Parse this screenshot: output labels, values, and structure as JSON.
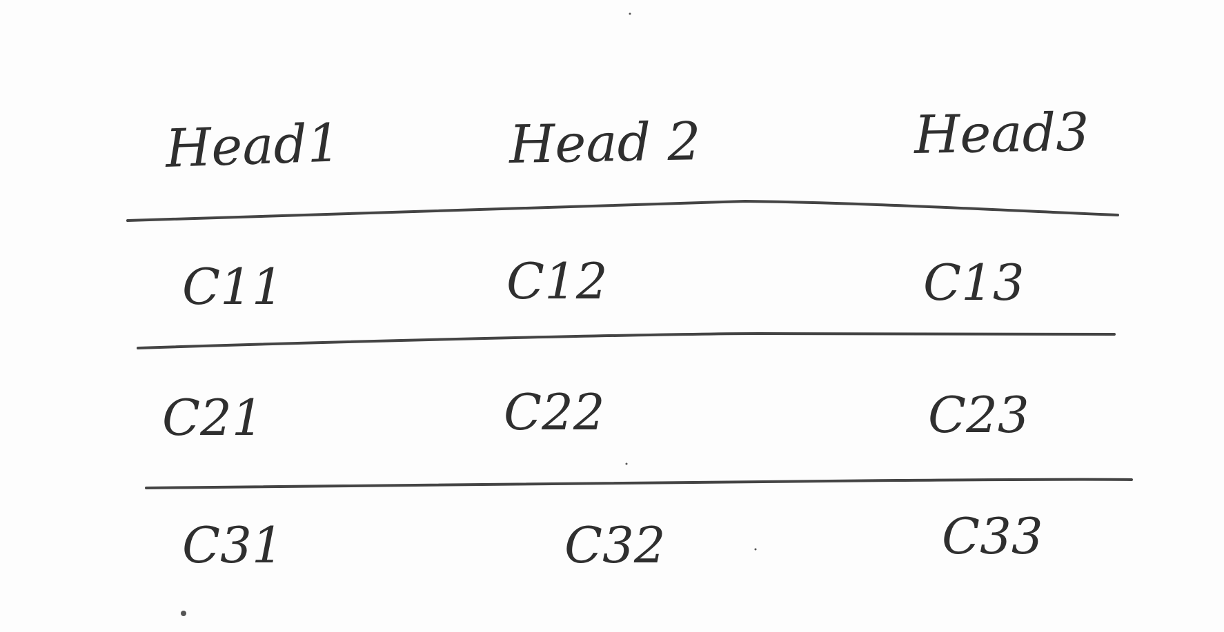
{
  "table": {
    "headers": [
      "Head1",
      "Head 2",
      "Head3"
    ],
    "rows": [
      [
        "C11",
        "C12",
        "C13"
      ],
      [
        "C21",
        "C22",
        "C23"
      ],
      [
        "C31",
        "C32",
        "C33"
      ]
    ]
  },
  "colors": {
    "ink": "#2f2f2f",
    "paper": "#fdfdfd"
  }
}
